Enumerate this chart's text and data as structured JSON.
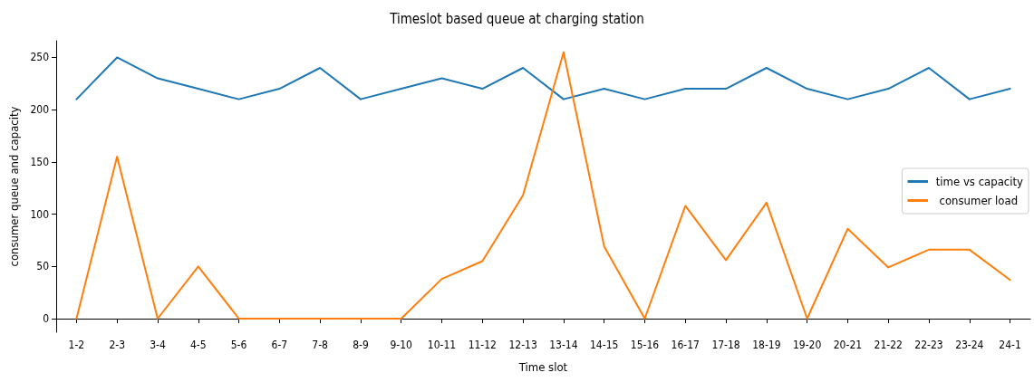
{
  "chart_data": {
    "type": "line",
    "title": "Timeslot based queue at charging station",
    "xlabel": "Time slot",
    "ylabel": "consumer queue and capacity",
    "categories": [
      "1-2",
      "2-3",
      "3-4",
      "4-5",
      "5-6",
      "6-7",
      "7-8",
      "8-9",
      "9-10",
      "10-11",
      "11-12",
      "12-13",
      "13-14",
      "14-15",
      "15-16",
      "16-17",
      "17-18",
      "18-19",
      "19-20",
      "20-21",
      "21-22",
      "22-23",
      "23-24",
      "24-1"
    ],
    "series": [
      {
        "name": "time vs capacity",
        "color": "#1f77b4",
        "values": [
          210,
          250,
          230,
          220,
          210,
          220,
          240,
          210,
          220,
          230,
          220,
          240,
          210,
          220,
          210,
          220,
          220,
          240,
          220,
          210,
          220,
          240,
          210,
          220
        ]
      },
      {
        "name": " consumer load",
        "color": "#ff7f0e",
        "values": [
          0,
          155,
          0,
          50,
          0,
          0,
          0,
          0,
          0,
          38,
          55,
          118,
          255,
          69,
          0,
          108,
          56,
          111,
          0,
          86,
          49,
          66,
          66,
          37
        ]
      }
    ],
    "ylim": [
      -13,
      266
    ],
    "yticks": [
      0,
      50,
      100,
      150,
      200,
      250
    ],
    "grid": false,
    "legend": "right",
    "marker": "none",
    "line_style": "solid"
  }
}
